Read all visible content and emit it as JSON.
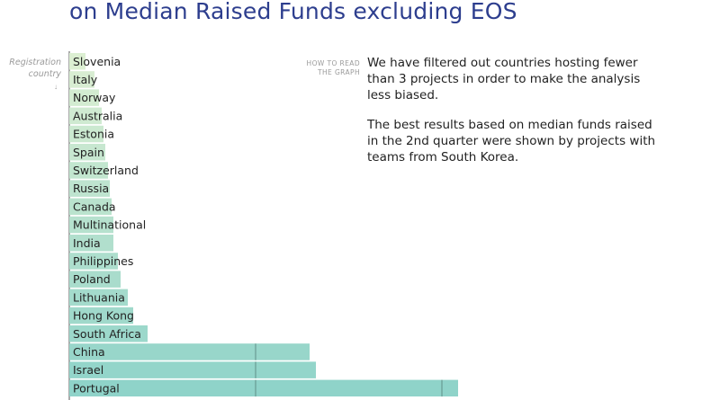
{
  "title": {
    "line1": "",
    "line2": "on Median Raised Funds excluding EOS"
  },
  "axis_label": {
    "line1": "Registration",
    "line2": "country",
    "arrow": "↓"
  },
  "how_to_read": {
    "line1": "HOW TO READ",
    "line2": "THE GRAPH"
  },
  "note": {
    "p1": "We have filtered out countries hosting fewer than 3 projects in order to make the analysis less biased.",
    "p2": "The best results based on median funds raised in the 2nd quarter were shown by projects with teams from South Korea."
  },
  "colors": {
    "bar_light": "#dcefd2",
    "bar_dark": "#8fd3c9",
    "title": "#2d3e8e"
  },
  "chart_data": {
    "type": "bar",
    "orientation": "horizontal",
    "title": "",
    "xlabel": "",
    "ylabel": "Registration country",
    "categories": [
      "Slovenia",
      "Italy",
      "Norway",
      "Australia",
      "Estonia",
      "Spain",
      "Switzerland",
      "Russia",
      "Canada",
      "Multinational",
      "India",
      "Philippines",
      "Poland",
      "Lithuania",
      "Hong Kong",
      "South Africa",
      "China",
      "Israel",
      "Portugal"
    ],
    "values": [
      18,
      28,
      33,
      36,
      38,
      40,
      43,
      45,
      47,
      49,
      49,
      54,
      57,
      65,
      71,
      87,
      267,
      274,
      432
    ],
    "reference_lines": [
      207,
      414
    ]
  }
}
